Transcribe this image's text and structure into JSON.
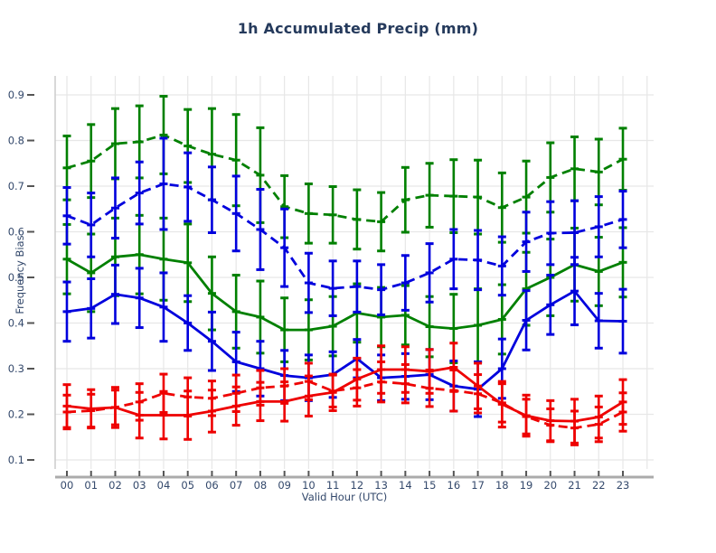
{
  "page": {
    "title": "1h Accumulated Precip (mm)"
  },
  "colors": {
    "text": "#33486b",
    "title_text": "#253a5c",
    "grid": "#e7e7e7",
    "left_spine": "#cccccc",
    "bottom_spine": "#ababab",
    "tick_mark": "#555555",
    "green": "#008000",
    "blue": "#0000dd",
    "red": "#ee0000"
  },
  "chart_data": {
    "type": "line",
    "title": "1h Accumulated Precip (mm)",
    "xlabel": "Valid Hour (UTC)",
    "ylabel": "Frequency Bias",
    "x_categories": [
      "00",
      "01",
      "02",
      "03",
      "04",
      "05",
      "06",
      "07",
      "08",
      "09",
      "10",
      "11",
      "12",
      "13",
      "14",
      "15",
      "16",
      "17",
      "18",
      "19",
      "20",
      "21",
      "22",
      "23"
    ],
    "y_ticks": [
      0.1,
      0.2,
      0.3,
      0.4,
      0.5,
      0.6,
      0.7,
      0.8,
      0.9
    ],
    "ylim": [
      0.08,
      0.94
    ],
    "grid": true,
    "legend": "none",
    "errorbars": true,
    "series": [
      {
        "name": "green-dashed",
        "color": "#008000",
        "style": "dashed",
        "values": [
          0.74,
          0.755,
          0.793,
          0.797,
          0.812,
          0.788,
          0.77,
          0.757,
          0.724,
          0.655,
          0.64,
          0.637,
          0.627,
          0.622,
          0.67,
          0.68,
          0.678,
          0.676,
          0.653,
          0.676,
          0.719,
          0.738,
          0.731,
          0.759
        ],
        "err": [
          0.07,
          0.08,
          0.077,
          0.079,
          0.085,
          0.08,
          0.1,
          0.1,
          0.104,
          0.068,
          0.065,
          0.062,
          0.065,
          0.064,
          0.071,
          0.07,
          0.08,
          0.081,
          0.076,
          0.079,
          0.076,
          0.07,
          0.072,
          0.068
        ]
      },
      {
        "name": "green-solid",
        "color": "#008000",
        "style": "solid",
        "values": [
          0.54,
          0.51,
          0.545,
          0.55,
          0.54,
          0.532,
          0.465,
          0.425,
          0.413,
          0.385,
          0.385,
          0.393,
          0.422,
          0.413,
          0.417,
          0.392,
          0.388,
          0.395,
          0.408,
          0.475,
          0.5,
          0.528,
          0.513,
          0.533
        ],
        "err": [
          0.076,
          0.085,
          0.085,
          0.086,
          0.09,
          0.085,
          0.08,
          0.08,
          0.079,
          0.07,
          0.066,
          0.065,
          0.064,
          0.065,
          0.065,
          0.066,
          0.075,
          0.08,
          0.076,
          0.08,
          0.084,
          0.08,
          0.075,
          0.076
        ]
      },
      {
        "name": "blue-dashed",
        "color": "#0000dd",
        "style": "dashed",
        "values": [
          0.635,
          0.615,
          0.652,
          0.685,
          0.705,
          0.698,
          0.67,
          0.64,
          0.605,
          0.565,
          0.488,
          0.476,
          0.48,
          0.473,
          0.488,
          0.51,
          0.54,
          0.538,
          0.525,
          0.578,
          0.597,
          0.598,
          0.611,
          0.627
        ],
        "err": [
          0.062,
          0.07,
          0.066,
          0.068,
          0.1,
          0.075,
          0.072,
          0.082,
          0.088,
          0.085,
          0.065,
          0.06,
          0.056,
          0.055,
          0.06,
          0.064,
          0.065,
          0.065,
          0.064,
          0.065,
          0.069,
          0.07,
          0.066,
          0.062
        ]
      },
      {
        "name": "blue-solid",
        "color": "#0000dd",
        "style": "solid",
        "values": [
          0.425,
          0.432,
          0.463,
          0.455,
          0.435,
          0.4,
          0.36,
          0.315,
          0.3,
          0.285,
          0.28,
          0.287,
          0.322,
          0.28,
          0.283,
          0.287,
          0.262,
          0.255,
          0.3,
          0.406,
          0.44,
          0.47,
          0.405,
          0.404
        ],
        "err": [
          0.065,
          0.065,
          0.064,
          0.065,
          0.075,
          0.06,
          0.064,
          0.065,
          0.06,
          0.055,
          0.05,
          0.05,
          0.042,
          0.05,
          0.05,
          0.055,
          0.055,
          0.06,
          0.065,
          0.065,
          0.065,
          0.074,
          0.06,
          0.07
        ]
      },
      {
        "name": "red-dashed",
        "color": "#ee0000",
        "style": "dashed",
        "values": [
          0.205,
          0.208,
          0.215,
          0.227,
          0.246,
          0.238,
          0.235,
          0.246,
          0.258,
          0.262,
          0.272,
          0.251,
          0.258,
          0.271,
          0.267,
          0.257,
          0.252,
          0.245,
          0.225,
          0.195,
          0.176,
          0.17,
          0.178,
          0.205
        ],
        "err": [
          0.037,
          0.036,
          0.038,
          0.04,
          0.042,
          0.042,
          0.038,
          0.04,
          0.038,
          0.038,
          0.04,
          0.035,
          0.04,
          0.044,
          0.042,
          0.04,
          0.045,
          0.042,
          0.042,
          0.038,
          0.036,
          0.037,
          0.038,
          0.042
        ]
      },
      {
        "name": "red-solid",
        "color": "#ee0000",
        "style": "solid",
        "values": [
          0.218,
          0.212,
          0.215,
          0.198,
          0.198,
          0.198,
          0.207,
          0.218,
          0.228,
          0.228,
          0.24,
          0.248,
          0.277,
          0.298,
          0.298,
          0.294,
          0.303,
          0.262,
          0.222,
          0.197,
          0.186,
          0.185,
          0.194,
          0.227
        ],
        "err": [
          0.047,
          0.042,
          0.044,
          0.05,
          0.052,
          0.053,
          0.046,
          0.042,
          0.042,
          0.043,
          0.044,
          0.04,
          0.046,
          0.052,
          0.05,
          0.048,
          0.053,
          0.05,
          0.05,
          0.045,
          0.044,
          0.048,
          0.046,
          0.049
        ]
      }
    ]
  }
}
